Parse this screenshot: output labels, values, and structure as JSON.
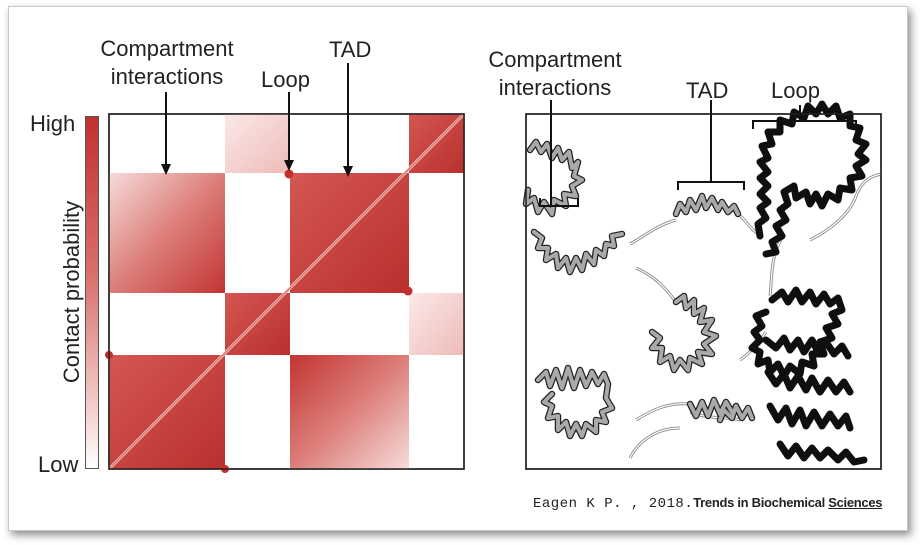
{
  "left_panel": {
    "colorbar_high": "High",
    "colorbar_low": "Low",
    "colorbar_axis_label": "Contact probability",
    "label_compartment_line1": "Compartment",
    "label_compartment_line2": "interactions",
    "label_loop": "Loop",
    "label_tad": "TAD",
    "colors": {
      "high": "#c1312f",
      "low": "#ffffff",
      "mid": "#d9706c"
    }
  },
  "right_panel": {
    "label_compartment_line1": "Compartment",
    "label_compartment_line2": "interactions",
    "label_tad": "TAD",
    "label_loop": "Loop",
    "colors": {
      "inactive_chromatin": "#a8a8a8",
      "active_chromatin": "#111111"
    }
  },
  "citation": {
    "author": "Eagen K P. , 2018.",
    "journal_prefix": "Trends in Biochemical ",
    "journal_suffix": "Sciences"
  }
}
